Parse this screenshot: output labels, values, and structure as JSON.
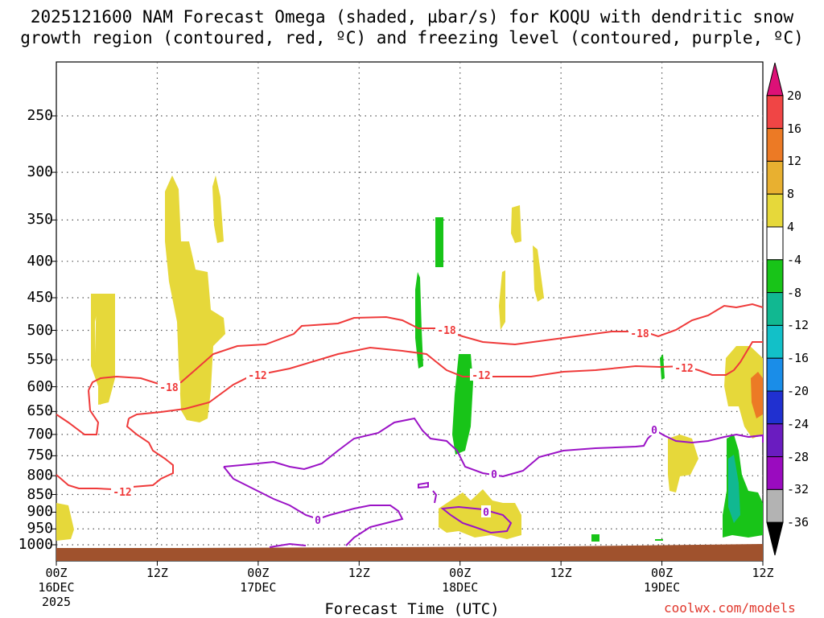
{
  "title": {
    "line1": "2025121600 NAM Forecast Omega (shaded, µbar/s) for KOQU with dendritic snow",
    "line2": "growth region (contoured, red, ºC) and freezing level (contoured, purple, ºC)"
  },
  "credit": "coolwx.com/models",
  "chart_data": {
    "type": "heatmap",
    "title": "2025121600 NAM Forecast Omega (shaded, µbar/s) for KOQU with dendritic snow growth region (contoured, red, ºC) and freezing level (contoured, purple, ºC)",
    "xlabel": "Forecast Time (UTC)",
    "ylabel": "",
    "y_scale": "log-pressure",
    "y_range_hPa": [
      1000,
      200
    ],
    "y_ticks": [
      "250",
      "300",
      "350",
      "400",
      "450",
      "500",
      "550",
      "600",
      "650",
      "700",
      "750",
      "800",
      "850",
      "900",
      "950",
      "1000"
    ],
    "x_range": [
      "2025-12-16 00Z",
      "2025-12-19 12Z"
    ],
    "x_ticks": [
      {
        "line1": "00Z",
        "line2": "16DEC",
        "line3": "2025"
      },
      {
        "line1": "12Z",
        "line2": "",
        "line3": ""
      },
      {
        "line1": "00Z",
        "line2": "17DEC",
        "line3": ""
      },
      {
        "line1": "12Z",
        "line2": "",
        "line3": ""
      },
      {
        "line1": "00Z",
        "line2": "18DEC",
        "line3": ""
      },
      {
        "line1": "12Z",
        "line2": "",
        "line3": ""
      },
      {
        "line1": "00Z",
        "line2": "19DEC",
        "line3": ""
      },
      {
        "line1": "12Z",
        "line2": "",
        "line3": ""
      }
    ],
    "grid": true,
    "colorbar": {
      "labels": [
        "20",
        "16",
        "12",
        "8",
        "4",
        "-4",
        "-8",
        "-12",
        "-16",
        "-20",
        "-24",
        "-28",
        "-32",
        "-36"
      ],
      "colors": [
        "#dd1177",
        "#f04545",
        "#ec7a25",
        "#e8b030",
        "#e6d83a",
        "#ffffff",
        "#18c418",
        "#11b891",
        "#12c0c8",
        "#1a8de8",
        "#2030d0",
        "#6a1cc0",
        "#9a0bbf",
        "#b3b3b3",
        "#000000"
      ]
    },
    "contour_labels": {
      "red": [
        "-18",
        "-12",
        "-18",
        "-12",
        "-18",
        "-12",
        "-12"
      ],
      "purple": [
        "0",
        "0",
        "0",
        "0"
      ]
    },
    "surface_color": "#a0522d",
    "dgz_color": "#ef3a3a",
    "freezing_color": "#9b13c6"
  }
}
